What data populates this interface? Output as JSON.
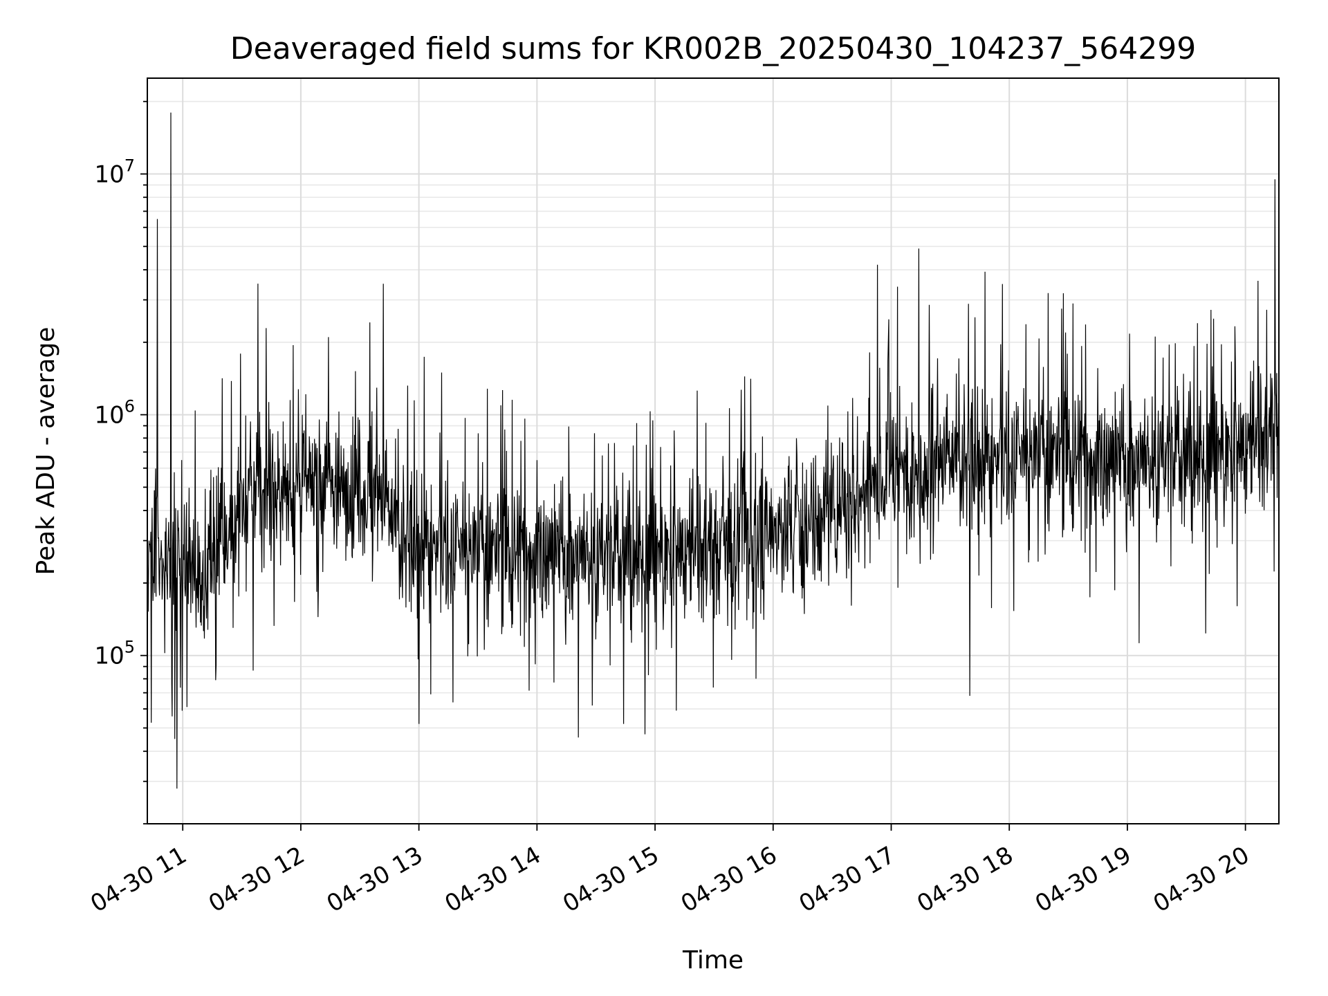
{
  "chart_data": {
    "type": "line",
    "title": "Deaveraged field sums for KR002B_20250430_104237_564299",
    "xlabel": "Time",
    "ylabel": "Peak ADU - average",
    "x_axis_type": "datetime",
    "xlim": [
      "2025-04-30 10:42",
      "2025-04-30 20:17"
    ],
    "ylim": [
      20000,
      25000000
    ],
    "y_scale": "log",
    "grid": true,
    "line_color": "#000000",
    "x_ticks": [
      "04-30 11",
      "04-30 12",
      "04-30 13",
      "04-30 14",
      "04-30 15",
      "04-30 16",
      "04-30 17",
      "04-30 18",
      "04-30 19",
      "04-30 20"
    ],
    "y_ticks": [
      {
        "value": 100000,
        "base": "10",
        "exp": "5"
      },
      {
        "value": 1000000,
        "base": "10",
        "exp": "6"
      },
      {
        "value": 10000000,
        "base": "10",
        "exp": "7"
      }
    ],
    "baseline_profile": {
      "time": [
        "2025-04-30 10:42",
        "2025-04-30 10:55",
        "2025-04-30 11:10",
        "2025-04-30 11:20",
        "2025-04-30 11:40",
        "2025-04-30 12:00",
        "2025-04-30 12:20",
        "2025-04-30 12:40",
        "2025-04-30 12:52",
        "2025-04-30 13:20",
        "2025-04-30 14:00",
        "2025-04-30 14:40",
        "2025-04-30 15:10",
        "2025-04-30 15:40",
        "2025-04-30 16:10",
        "2025-04-30 16:40",
        "2025-04-30 17:00",
        "2025-04-30 17:30",
        "2025-04-30 18:00",
        "2025-04-30 18:30",
        "2025-04-30 19:00",
        "2025-04-30 19:30",
        "2025-04-30 20:00",
        "2025-04-30 20:17"
      ],
      "value": [
        300000,
        250000,
        220000,
        350000,
        480000,
        500000,
        520000,
        480000,
        300000,
        270000,
        280000,
        250000,
        270000,
        300000,
        350000,
        450000,
        600000,
        650000,
        650000,
        700000,
        650000,
        650000,
        750000,
        900000
      ]
    },
    "spikes": [
      {
        "time": "2025-04-30 10:54",
        "value": 18000000
      },
      {
        "time": "2025-04-30 10:47",
        "value": 6500000
      },
      {
        "time": "2025-04-30 20:15",
        "value": 9500000
      },
      {
        "time": "2025-04-30 17:14",
        "value": 4900000
      },
      {
        "time": "2025-04-30 16:53",
        "value": 4200000
      },
      {
        "time": "2025-04-30 12:42",
        "value": 3500000
      },
      {
        "time": "2025-04-30 12:14",
        "value": 2100000
      },
      {
        "time": "2025-04-30 10:57",
        "value": 28000
      },
      {
        "time": "2025-04-30 10:56",
        "value": 45000
      },
      {
        "time": "2025-04-30 13:00",
        "value": 52000
      },
      {
        "time": "2025-04-30 14:44",
        "value": 52000
      },
      {
        "time": "2025-04-30 17:40",
        "value": 68000
      },
      {
        "time": "2025-04-30 14:28",
        "value": 62000
      }
    ]
  }
}
